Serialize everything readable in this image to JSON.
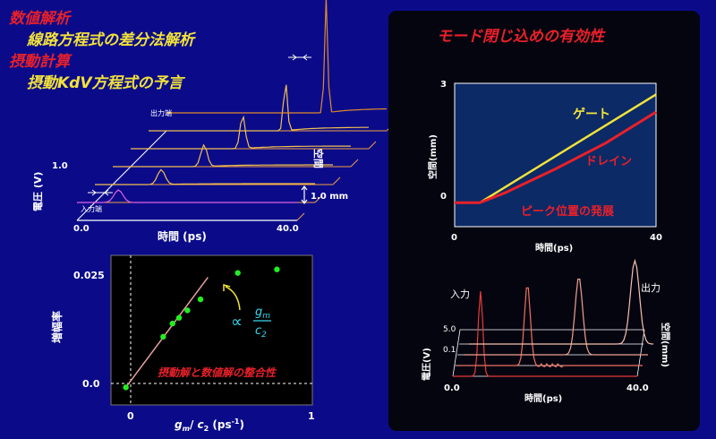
{
  "headings": {
    "line1": "数値解析",
    "line2": "線路方程式の差分法解析",
    "line3": "摂動計算",
    "line4": "摂動KdV方程式の予言"
  },
  "panel_right_title": "モード閉じ込めの有効性",
  "colors": {
    "background": "#0b0b8a",
    "right_panel": "#050510",
    "red_text": "#e8202a",
    "yellow_text": "#f2e23a",
    "gate": "#f2e23a",
    "drain": "#e8202a",
    "wave_orange": "#e08a2a",
    "wave_yellow": "#f0c050",
    "wave_pink": "#e060e0",
    "fit_line": "#e8a0a0",
    "points": "#22ee22"
  },
  "chart_data": [
    {
      "type": "line",
      "title": "",
      "xlabel": "時間 (ps)",
      "ylabel": "電圧 (V)",
      "zlabel": "空間",
      "xlim": [
        0.0,
        40.0
      ],
      "y_tick": "1.0",
      "x_ticks": [
        "0.0",
        "40.0"
      ],
      "annotations": {
        "input": "入力端",
        "output": "出力端",
        "space_scale": "1.0 mm"
      },
      "peak_times": [
        10,
        16,
        22,
        27,
        33,
        38.5
      ]
    },
    {
      "type": "scatter",
      "title": "",
      "xlabel": "g_m / c_2 (ps-1)",
      "xlabel_parts": {
        "g": "g",
        "gsub": "m",
        "sep": "/ ",
        "c": "c",
        "csub": "2",
        "unit": " (ps",
        "exp": "-1",
        "close": ")"
      },
      "ylabel": "増幅率",
      "xlim": [
        -0.08,
        1.0
      ],
      "ylim": [
        -0.004,
        0.03
      ],
      "x_ticks": [
        "0",
        "1"
      ],
      "y_ticks": [
        "0.0",
        "0.025"
      ],
      "points": [
        {
          "x": 0.0,
          "y": 0.0
        },
        {
          "x": 0.2,
          "y": 0.0115
        },
        {
          "x": 0.25,
          "y": 0.0145
        },
        {
          "x": 0.285,
          "y": 0.0158
        },
        {
          "x": 0.33,
          "y": 0.0175
        },
        {
          "x": 0.4,
          "y": 0.02
        },
        {
          "x": 0.6,
          "y": 0.026
        },
        {
          "x": 0.81,
          "y": 0.0268
        }
      ],
      "fit_line": [
        {
          "x": 0.0,
          "y": 0.0
        },
        {
          "x": 0.44,
          "y": 0.025
        }
      ],
      "annotations": {
        "proportional": "∝",
        "frac_num": "g",
        "frac_num_sub": "m",
        "frac_den": "c",
        "frac_den_sub": "2",
        "note": "摂動解と数値解の整合性"
      }
    },
    {
      "type": "line",
      "title": "",
      "xlabel": "時間(ps)",
      "ylabel": "空間(mm)",
      "xlim": [
        0,
        40
      ],
      "ylim": [
        -0.6,
        3
      ],
      "x_ticks": [
        "0",
        "40"
      ],
      "y_ticks": [
        "0",
        "3"
      ],
      "series": [
        {
          "name": "ゲート",
          "color": "#f2e23a",
          "x": [
            0,
            5,
            40
          ],
          "y": [
            0,
            0,
            2.72
          ]
        },
        {
          "name": "ドレイン",
          "color": "#e8202a",
          "x": [
            0,
            5,
            10,
            20,
            30,
            40
          ],
          "y": [
            0,
            0,
            0.25,
            0.85,
            1.5,
            2.28
          ]
        }
      ],
      "annotations": {
        "peak_label": "ピーク位置の発展"
      }
    },
    {
      "type": "line",
      "title": "",
      "xlabel": "時間(ps)",
      "ylabel": "電圧(V)",
      "zlabel": "空間(mm)",
      "x_ticks": [
        "0.0",
        "40.0"
      ],
      "y_ticks": [
        "5.0",
        "0.1"
      ],
      "annotations": {
        "input": "入力",
        "output": "出力"
      },
      "peak_times": [
        6,
        15,
        25,
        36
      ]
    }
  ]
}
